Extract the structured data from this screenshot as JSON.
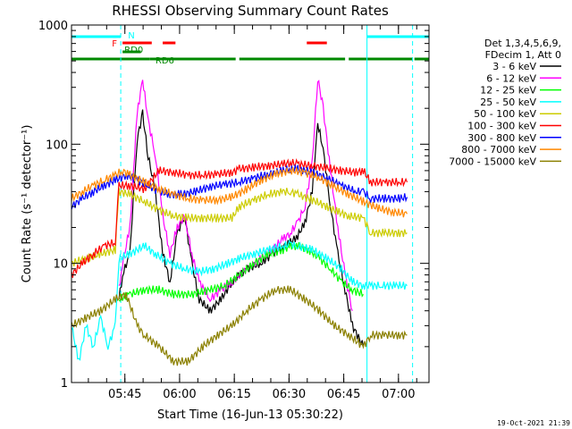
{
  "chart_data": {
    "type": "line",
    "title": "RHESSI Observing Summary Count Rates",
    "xlabel": "Start Time (16-Jun-13 05:30:22)",
    "ylabel": "Count Rate (s⁻¹ detector⁻¹)",
    "y_scale": "log",
    "ylim": [
      1,
      1000
    ],
    "xlim_minutes": [
      0,
      98
    ],
    "x_ticks": [
      {
        "label": "05:45",
        "minute": 14.63
      },
      {
        "label": "06:00",
        "minute": 29.63
      },
      {
        "label": "06:15",
        "minute": 44.63
      },
      {
        "label": "06:30",
        "minute": 59.63
      },
      {
        "label": "06:45",
        "minute": 74.63
      },
      {
        "label": "07:00",
        "minute": 89.63
      }
    ],
    "y_ticks": [
      1,
      10,
      100,
      1000
    ],
    "grid": false,
    "legend_position": "right",
    "legend_header": [
      "Det 1,3,4,5,6,9,",
      "FDecim 1, Att 0"
    ],
    "timestamp": "19-Oct-2021 21:39",
    "series": [
      {
        "name": "3 - 6 keV",
        "color": "#000000",
        "points": [
          [
            13,
            5
          ],
          [
            14,
            8
          ],
          [
            16,
            12
          ],
          [
            18,
            110
          ],
          [
            19.5,
            180
          ],
          [
            21,
            80
          ],
          [
            23,
            40
          ],
          [
            25,
            12
          ],
          [
            27,
            7
          ],
          [
            29,
            18
          ],
          [
            31,
            25
          ],
          [
            33,
            10
          ],
          [
            35,
            5
          ],
          [
            38,
            4
          ],
          [
            41,
            5
          ],
          [
            44,
            7
          ],
          [
            48,
            9
          ],
          [
            52,
            10
          ],
          [
            55,
            12
          ],
          [
            58,
            14
          ],
          [
            60,
            15
          ],
          [
            62,
            17
          ],
          [
            64,
            22
          ],
          [
            66,
            40
          ],
          [
            67.5,
            150
          ],
          [
            69,
            90
          ],
          [
            71,
            30
          ],
          [
            73,
            12
          ],
          [
            75,
            6
          ],
          [
            77,
            3
          ],
          [
            80,
            2
          ]
        ]
      },
      {
        "name": "6 - 12 keV",
        "color": "#ff00ff",
        "points": [
          [
            13,
            6
          ],
          [
            14,
            10
          ],
          [
            16,
            20
          ],
          [
            18,
            180
          ],
          [
            19.5,
            350
          ],
          [
            21,
            160
          ],
          [
            23,
            80
          ],
          [
            25,
            25
          ],
          [
            27,
            12
          ],
          [
            29,
            20
          ],
          [
            31,
            25
          ],
          [
            33,
            12
          ],
          [
            35,
            7
          ],
          [
            38,
            5
          ],
          [
            41,
            6
          ],
          [
            44,
            7
          ],
          [
            48,
            9
          ],
          [
            52,
            11
          ],
          [
            55,
            13
          ],
          [
            58,
            16
          ],
          [
            60,
            18
          ],
          [
            62,
            22
          ],
          [
            64,
            30
          ],
          [
            66,
            70
          ],
          [
            67.5,
            360
          ],
          [
            69,
            200
          ],
          [
            71,
            60
          ],
          [
            73,
            20
          ],
          [
            75,
            8
          ],
          [
            77,
            4
          ]
        ]
      },
      {
        "name": "12 - 25 keV",
        "color": "#00ff00",
        "points": [
          [
            13,
            5
          ],
          [
            16,
            5.5
          ],
          [
            20,
            6
          ],
          [
            24,
            6
          ],
          [
            28,
            5.5
          ],
          [
            33,
            5.5
          ],
          [
            38,
            6
          ],
          [
            42,
            6.5
          ],
          [
            46,
            8
          ],
          [
            50,
            10
          ],
          [
            54,
            12
          ],
          [
            58,
            13
          ],
          [
            60,
            14
          ],
          [
            62,
            14
          ],
          [
            65,
            13
          ],
          [
            68,
            11
          ],
          [
            71,
            9
          ],
          [
            74,
            7
          ],
          [
            77,
            6
          ],
          [
            80,
            5.5
          ]
        ]
      },
      {
        "name": "25 - 50 keV",
        "color": "#00ffff",
        "points": [
          [
            0,
            3
          ],
          [
            2,
            1.5
          ],
          [
            4,
            3
          ],
          [
            6,
            2
          ],
          [
            8,
            3.5
          ],
          [
            10,
            2
          ],
          [
            12,
            3
          ],
          [
            13,
            11
          ],
          [
            16,
            12
          ],
          [
            20,
            14
          ],
          [
            23,
            12
          ],
          [
            27,
            10
          ],
          [
            31,
            9
          ],
          [
            35,
            8.5
          ],
          [
            39,
            9
          ],
          [
            43,
            10
          ],
          [
            46,
            11
          ],
          [
            50,
            12
          ],
          [
            54,
            13
          ],
          [
            58,
            14
          ],
          [
            60,
            14.5
          ],
          [
            62,
            14
          ],
          [
            66,
            13
          ],
          [
            70,
            11
          ],
          [
            74,
            9
          ],
          [
            77,
            7
          ],
          [
            80,
            6.5
          ],
          [
            82,
            6.5
          ],
          [
            85,
            6.5
          ],
          [
            89,
            6.5
          ],
          [
            92,
            6.5
          ]
        ]
      },
      {
        "name": "50 - 100 keV",
        "color": "#cccc00",
        "points": [
          [
            0,
            10
          ],
          [
            4,
            11
          ],
          [
            8,
            12
          ],
          [
            12,
            13
          ],
          [
            13,
            40
          ],
          [
            16,
            38
          ],
          [
            20,
            33
          ],
          [
            24,
            28
          ],
          [
            28,
            25
          ],
          [
            32,
            24
          ],
          [
            36,
            24
          ],
          [
            40,
            24
          ],
          [
            44,
            24
          ],
          [
            46,
            30
          ],
          [
            50,
            34
          ],
          [
            54,
            38
          ],
          [
            58,
            40
          ],
          [
            60,
            40
          ],
          [
            62,
            38
          ],
          [
            66,
            34
          ],
          [
            70,
            30
          ],
          [
            73,
            27
          ],
          [
            76,
            25
          ],
          [
            80,
            24
          ],
          [
            82,
            18
          ],
          [
            86,
            18
          ],
          [
            90,
            18
          ],
          [
            92,
            18
          ]
        ]
      },
      {
        "name": "100 - 300 keV",
        "color": "#ff0000",
        "points": [
          [
            0,
            8
          ],
          [
            3,
            10
          ],
          [
            6,
            12
          ],
          [
            9,
            14
          ],
          [
            12,
            15
          ],
          [
            13,
            45
          ],
          [
            16,
            45
          ],
          [
            20,
            42
          ],
          [
            24,
            60
          ],
          [
            28,
            58
          ],
          [
            32,
            55
          ],
          [
            36,
            55
          ],
          [
            40,
            56
          ],
          [
            44,
            58
          ],
          [
            46,
            62
          ],
          [
            50,
            64
          ],
          [
            54,
            66
          ],
          [
            58,
            68
          ],
          [
            60,
            70
          ],
          [
            62,
            68
          ],
          [
            66,
            66
          ],
          [
            70,
            63
          ],
          [
            74,
            60
          ],
          [
            78,
            58
          ],
          [
            80,
            60
          ],
          [
            82,
            48
          ],
          [
            86,
            48
          ],
          [
            90,
            48
          ],
          [
            92,
            48
          ]
        ]
      },
      {
        "name": "300 - 800 keV",
        "color": "#0000ff",
        "points": [
          [
            0,
            30
          ],
          [
            3,
            35
          ],
          [
            6,
            40
          ],
          [
            9,
            45
          ],
          [
            12,
            50
          ],
          [
            15,
            55
          ],
          [
            18,
            50
          ],
          [
            21,
            45
          ],
          [
            24,
            40
          ],
          [
            27,
            38
          ],
          [
            30,
            38
          ],
          [
            34,
            40
          ],
          [
            38,
            44
          ],
          [
            42,
            46
          ],
          [
            46,
            48
          ],
          [
            50,
            52
          ],
          [
            54,
            56
          ],
          [
            58,
            60
          ],
          [
            60,
            62
          ],
          [
            62,
            62
          ],
          [
            66,
            58
          ],
          [
            70,
            52
          ],
          [
            74,
            45
          ],
          [
            78,
            40
          ],
          [
            80,
            40
          ],
          [
            82,
            35
          ],
          [
            86,
            35
          ],
          [
            90,
            35
          ],
          [
            92,
            36
          ]
        ]
      },
      {
        "name": "800 - 7000 keV",
        "color": "#ff8800",
        "points": [
          [
            0,
            35
          ],
          [
            3,
            40
          ],
          [
            6,
            45
          ],
          [
            9,
            50
          ],
          [
            12,
            55
          ],
          [
            14,
            60
          ],
          [
            16,
            55
          ],
          [
            20,
            48
          ],
          [
            24,
            42
          ],
          [
            28,
            38
          ],
          [
            32,
            35
          ],
          [
            36,
            34
          ],
          [
            40,
            34
          ],
          [
            44,
            36
          ],
          [
            48,
            42
          ],
          [
            52,
            50
          ],
          [
            56,
            56
          ],
          [
            60,
            60
          ],
          [
            64,
            58
          ],
          [
            68,
            52
          ],
          [
            72,
            44
          ],
          [
            76,
            38
          ],
          [
            80,
            33
          ],
          [
            84,
            29
          ],
          [
            88,
            27
          ],
          [
            92,
            26
          ]
        ]
      },
      {
        "name": "7000 - 15000 keV",
        "color": "#8b8000",
        "points": [
          [
            0,
            3
          ],
          [
            4,
            3.5
          ],
          [
            8,
            4
          ],
          [
            12,
            5
          ],
          [
            15,
            5.5
          ],
          [
            18,
            3
          ],
          [
            20,
            2.5
          ],
          [
            24,
            2
          ],
          [
            28,
            1.5
          ],
          [
            32,
            1.5
          ],
          [
            36,
            2
          ],
          [
            40,
            2.5
          ],
          [
            44,
            3
          ],
          [
            48,
            4
          ],
          [
            52,
            5
          ],
          [
            56,
            6
          ],
          [
            60,
            6
          ],
          [
            64,
            5
          ],
          [
            68,
            4
          ],
          [
            72,
            3
          ],
          [
            76,
            2.5
          ],
          [
            80,
            2
          ],
          [
            82,
            2.5
          ],
          [
            86,
            2.5
          ],
          [
            90,
            2.5
          ],
          [
            92,
            2.5
          ]
        ]
      }
    ],
    "observing_flags": [
      {
        "label": "N",
        "color": "#00ffff",
        "segments": [
          [
            0,
            13.5
          ],
          [
            81,
            98
          ]
        ]
      },
      {
        "label": "F",
        "color": "#ff0000",
        "segments": [
          [
            14,
            22
          ],
          [
            25,
            28.5
          ],
          [
            64.5,
            70
          ]
        ]
      },
      {
        "label": "RD0",
        "color": "#008800",
        "segments": [
          [
            14,
            19
          ]
        ]
      },
      {
        "label": "RD6",
        "color": "#008800",
        "segments": [
          [
            0,
            21.5
          ],
          [
            21.5,
            45
          ],
          [
            46,
            75
          ],
          [
            76,
            93.5
          ],
          [
            94,
            98
          ]
        ]
      }
    ],
    "vertical_markers": [
      {
        "minute": 13.5,
        "style": "dashed",
        "color": "#00ffff"
      },
      {
        "minute": 81,
        "style": "solid",
        "color": "#00ffff"
      },
      {
        "minute": 93.5,
        "style": "dashed",
        "color": "#00ffff"
      }
    ]
  }
}
